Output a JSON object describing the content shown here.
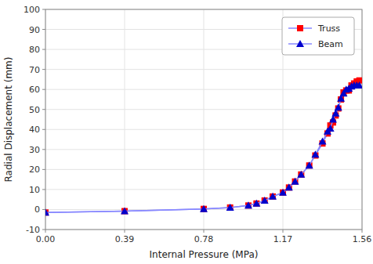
{
  "chart_data": {
    "type": "line",
    "xlabel": "Internal Pressure (MPa)",
    "ylabel": "Radial Displacement (mm)",
    "x": [
      0.0,
      0.39,
      0.78,
      0.91,
      1.0,
      1.04,
      1.08,
      1.12,
      1.17,
      1.2,
      1.23,
      1.26,
      1.3,
      1.33,
      1.365,
      1.39,
      1.404,
      1.417,
      1.43,
      1.443,
      1.456,
      1.469,
      1.482,
      1.495,
      1.508,
      1.521,
      1.534,
      1.547
    ],
    "series": [
      {
        "name": "Truss",
        "color": "#ff0000",
        "marker": "square",
        "values": [
          -1.5,
          -0.8,
          0.3,
          1.0,
          2.0,
          3.0,
          4.5,
          6.5,
          8.5,
          11.0,
          14.0,
          17.5,
          22.0,
          27.0,
          33.0,
          38.0,
          42.0,
          43.5,
          47.0,
          50.5,
          55.0,
          58.5,
          59.5,
          59.5,
          62.0,
          63.0,
          64.0,
          64.5
        ]
      },
      {
        "name": "Beam",
        "color": "#0000cc",
        "marker": "triangle",
        "values": [
          -1.5,
          -0.8,
          0.3,
          1.0,
          2.0,
          3.0,
          4.5,
          6.5,
          8.5,
          11.0,
          14.0,
          17.5,
          22.0,
          27.5,
          34.0,
          39.0,
          40.5,
          45.0,
          48.0,
          51.0,
          55.5,
          58.0,
          60.0,
          60.5,
          61.5,
          62.0,
          62.0,
          62.0
        ]
      }
    ],
    "color": "#8888ff",
    "xlim": [
      0.0,
      1.56
    ],
    "ylim": [
      -10,
      100
    ],
    "xticks": [
      {
        "value": 0,
        "label": "0.00"
      },
      0.39,
      0.78,
      1.17,
      1.56
    ],
    "yticks": [
      -10,
      0,
      10,
      20,
      30,
      40,
      50,
      60,
      70,
      80,
      90,
      100
    ],
    "grid": true,
    "legend": "upper right"
  }
}
